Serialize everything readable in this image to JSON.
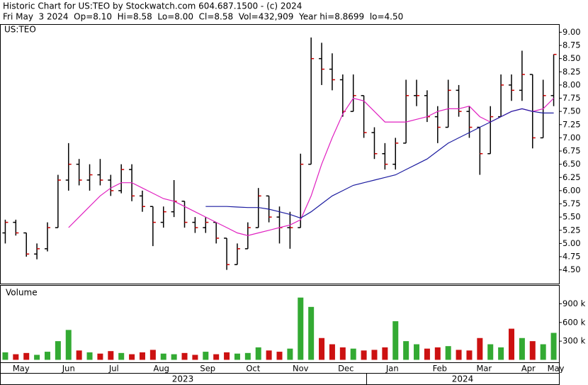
{
  "chart_data": {
    "type": "ohlc",
    "title": "Historic Chart for US:TEO by Stockwatch.com 604.687.1500 - (c) 2024",
    "subtitle": "Fri May  3 2024  Op=8.10  Hi=8.58  Lo=8.00  Cl=8.58  Vol=432,909  Year hi=8.8699  lo=4.50",
    "symbol": "US:TEO",
    "volume_label": "Volume",
    "xlim": [
      -0.5,
      52.5
    ],
    "xticks": [
      {
        "value": 1.5,
        "label": "May"
      },
      {
        "value": 6,
        "label": "Jun"
      },
      {
        "value": 10.3,
        "label": "Jul"
      },
      {
        "value": 14.8,
        "label": "Aug"
      },
      {
        "value": 19.2,
        "label": "Sep"
      },
      {
        "value": 23.5,
        "label": "Oct"
      },
      {
        "value": 28,
        "label": "Nov"
      },
      {
        "value": 32.3,
        "label": "Dec"
      },
      {
        "value": 36.7,
        "label": "Jan"
      },
      {
        "value": 41.2,
        "label": "Feb"
      },
      {
        "value": 45.4,
        "label": "Mar"
      },
      {
        "value": 49.6,
        "label": "Apr"
      },
      {
        "value": 52.2,
        "label": "May"
      }
    ],
    "years": [
      "2023",
      "2024"
    ],
    "ylim": [
      4.24,
      9.14
    ],
    "yticks": [
      {
        "value": 4.5,
        "label": "4.50"
      },
      {
        "value": 4.75,
        "label": "4.75"
      },
      {
        "value": 5,
        "label": "5.00"
      },
      {
        "value": 5.25,
        "label": "5.25"
      },
      {
        "value": 5.5,
        "label": "5.50"
      },
      {
        "value": 5.75,
        "label": "5.75"
      },
      {
        "value": 6,
        "label": "6.00"
      },
      {
        "value": 6.25,
        "label": "6.25"
      },
      {
        "value": 6.5,
        "label": "6.50"
      },
      {
        "value": 6.75,
        "label": "6.75"
      },
      {
        "value": 7,
        "label": "7.00"
      },
      {
        "value": 7.25,
        "label": "7.25"
      },
      {
        "value": 7.5,
        "label": "7.50"
      },
      {
        "value": 7.75,
        "label": "7.75"
      },
      {
        "value": 8,
        "label": "8.00"
      },
      {
        "value": 8.25,
        "label": "8.25"
      },
      {
        "value": 8.5,
        "label": "8.50"
      },
      {
        "value": 8.75,
        "label": "8.75"
      },
      {
        "value": 9,
        "label": "9.00"
      }
    ],
    "grid": false,
    "open": [
      5.2,
      5.4,
      5.2,
      4.8,
      4.9,
      5.3,
      6.2,
      6.5,
      6.2,
      6.3,
      6.2,
      6.0,
      6.4,
      5.9,
      5.7,
      5.4,
      5.6,
      5.8,
      5.4,
      5.3,
      5.4,
      5.1,
      4.6,
      4.9,
      5.3,
      5.9,
      5.5,
      5.3,
      5.3,
      6.5,
      8.5,
      8.3,
      8.1,
      7.5,
      7.8,
      7.1,
      6.7,
      6.5,
      6.9,
      7.8,
      7.8,
      7.4,
      7.2,
      7.9,
      7.5,
      7.2,
      6.7,
      7.4,
      8.0,
      7.9,
      8.2,
      7.0,
      7.8
    ],
    "high": [
      5.45,
      5.45,
      5.2,
      5.0,
      5.4,
      6.3,
      6.9,
      6.6,
      6.5,
      6.6,
      6.3,
      6.5,
      6.5,
      6.0,
      5.7,
      5.7,
      6.2,
      5.8,
      5.5,
      5.5,
      5.4,
      5.1,
      5.0,
      5.4,
      6.05,
      5.9,
      5.7,
      5.6,
      6.7,
      8.9,
      8.8,
      8.6,
      8.2,
      8.2,
      7.8,
      7.2,
      6.9,
      7.0,
      8.1,
      8.1,
      7.9,
      7.6,
      8.1,
      8.0,
      7.6,
      7.2,
      7.6,
      8.2,
      8.2,
      8.65,
      8.2,
      8.1,
      8.58
    ],
    "low": [
      5.0,
      5.15,
      4.75,
      4.7,
      4.85,
      5.3,
      6.0,
      6.1,
      6.0,
      6.1,
      5.9,
      5.95,
      5.8,
      5.6,
      4.95,
      5.3,
      5.5,
      5.3,
      5.2,
      5.2,
      5.0,
      4.5,
      4.6,
      4.9,
      5.3,
      5.4,
      5.0,
      4.9,
      5.3,
      6.5,
      8.0,
      7.9,
      7.4,
      7.5,
      7.0,
      6.6,
      6.4,
      6.4,
      6.9,
      7.6,
      7.3,
      6.9,
      7.2,
      7.4,
      7.0,
      6.3,
      6.7,
      7.4,
      7.7,
      7.7,
      6.8,
      7.0,
      7.6
    ],
    "close": [
      5.4,
      5.2,
      4.8,
      4.9,
      5.3,
      6.2,
      6.5,
      6.2,
      6.3,
      6.2,
      6.0,
      6.4,
      5.9,
      5.7,
      5.4,
      5.6,
      5.8,
      5.4,
      5.3,
      5.4,
      5.1,
      4.6,
      4.9,
      5.3,
      5.9,
      5.5,
      5.3,
      5.3,
      6.5,
      8.5,
      8.3,
      8.1,
      7.5,
      7.8,
      7.1,
      6.7,
      6.5,
      6.9,
      7.8,
      7.8,
      7.4,
      7.2,
      7.9,
      7.5,
      7.2,
      6.7,
      7.4,
      8.0,
      7.9,
      8.2,
      7.0,
      7.8,
      8.58
    ],
    "bar_color": "#000000",
    "close_color": "#cc0000",
    "series": [
      {
        "color": "#e020c0",
        "values": [
          null,
          null,
          null,
          null,
          null,
          null,
          5.3,
          5.5,
          5.7,
          5.9,
          6.05,
          6.15,
          6.15,
          6.05,
          5.95,
          5.85,
          5.8,
          5.7,
          5.6,
          5.5,
          5.4,
          5.3,
          5.2,
          5.15,
          5.2,
          5.25,
          5.3,
          5.35,
          5.45,
          5.9,
          6.5,
          7.0,
          7.45,
          7.75,
          7.7,
          7.5,
          7.3,
          7.3,
          7.3,
          7.35,
          7.4,
          7.5,
          7.55,
          7.55,
          7.6,
          7.4,
          7.3,
          7.4,
          7.5,
          7.55,
          7.5,
          7.55,
          7.75
        ]
      },
      {
        "color": "#1c1ca0",
        "values": [
          null,
          null,
          null,
          null,
          null,
          null,
          null,
          null,
          null,
          null,
          null,
          null,
          null,
          null,
          null,
          null,
          null,
          null,
          null,
          5.7,
          5.7,
          5.7,
          5.69,
          5.68,
          5.68,
          5.65,
          5.6,
          5.55,
          5.48,
          5.6,
          5.75,
          5.9,
          6.0,
          6.1,
          6.15,
          6.2,
          6.25,
          6.3,
          6.4,
          6.5,
          6.6,
          6.75,
          6.9,
          7.0,
          7.1,
          7.2,
          7.3,
          7.4,
          7.5,
          7.55,
          7.5,
          7.47,
          7.47
        ]
      }
    ],
    "volume": [
      120000,
      90000,
      110000,
      80000,
      130000,
      300000,
      480000,
      150000,
      120000,
      100000,
      140000,
      110000,
      90000,
      120000,
      160000,
      100000,
      90000,
      110000,
      80000,
      130000,
      90000,
      120000,
      100000,
      110000,
      200000,
      150000,
      130000,
      180000,
      1000000,
      850000,
      350000,
      250000,
      200000,
      180000,
      150000,
      160000,
      200000,
      620000,
      300000,
      250000,
      180000,
      200000,
      220000,
      160000,
      150000,
      350000,
      250000,
      200000,
      500000,
      350000,
      300000,
      250000,
      432909
    ],
    "volume_up_color": "#33aa33",
    "volume_down_color": "#cc1111",
    "y2lim": [
      -40000,
      1190000
    ],
    "y2ticks": [
      {
        "value": 300000,
        "label": "300 k"
      },
      {
        "value": 600000,
        "label": "600 k"
      },
      {
        "value": 900000,
        "label": "900 k"
      }
    ]
  }
}
